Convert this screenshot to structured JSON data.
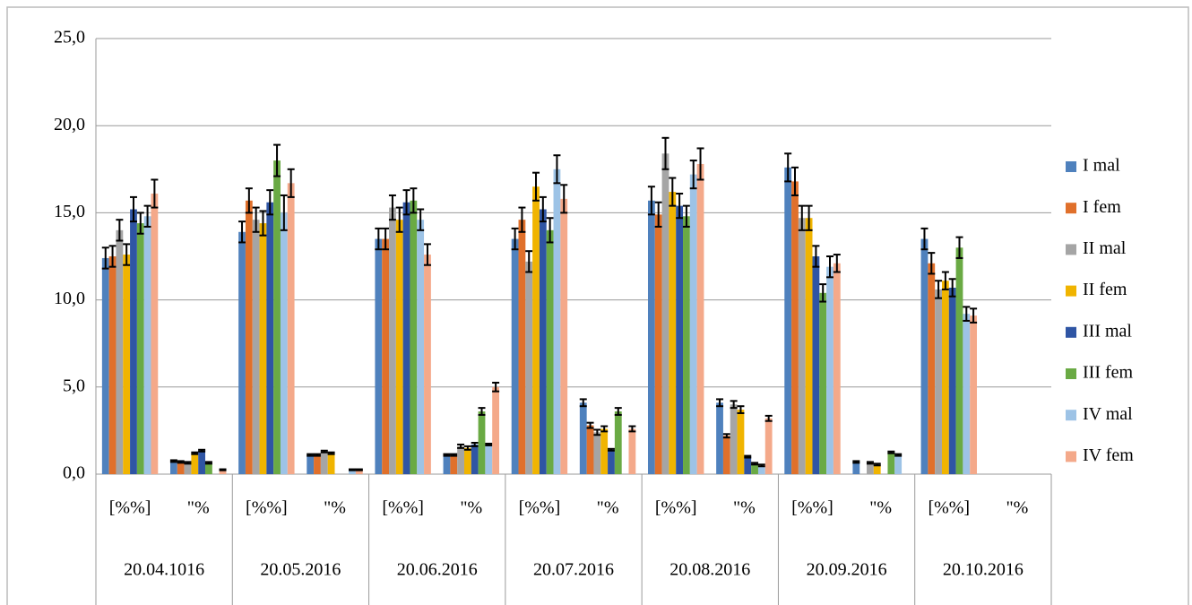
{
  "chart_data": {
    "type": "bar",
    "categories": [
      "[%%]",
      "\"%",
      "[%%]",
      "\"%",
      "[%%]",
      "\"%",
      "[%%]",
      "\"%",
      "[%%]",
      "\"%",
      "[%%]",
      "\"%",
      "[%%]",
      "\"%"
    ],
    "groups": [
      "20.04.1016",
      "20.05.2016",
      "20.06.2016",
      "20.07.2016",
      "20.08.2016",
      "20.09.2016",
      "20.10.2016"
    ],
    "ylim": [
      0,
      25
    ],
    "yticks": [
      {
        "value": 0,
        "label": "0,0"
      },
      {
        "value": 5,
        "label": "5,0"
      },
      {
        "value": 10,
        "label": "10,0"
      },
      {
        "value": 15,
        "label": "15,0"
      },
      {
        "value": 20,
        "label": "20,0"
      },
      {
        "value": 25,
        "label": "25,0"
      }
    ],
    "grid": true,
    "legend": "right",
    "series": [
      {
        "name": "I mal",
        "color": "#4f81bd",
        "values": [
          12.4,
          0.75,
          13.9,
          1.1,
          13.5,
          1.1,
          13.5,
          4.1,
          15.7,
          4.1,
          17.6,
          0.7,
          13.5,
          null
        ],
        "errors": [
          0.6,
          0.05,
          0.6,
          0.05,
          0.6,
          0.05,
          0.6,
          0.2,
          0.8,
          0.2,
          0.8,
          0.05,
          0.6,
          null
        ]
      },
      {
        "name": "I fem",
        "color": "#e0702b",
        "values": [
          12.5,
          0.7,
          15.7,
          1.1,
          13.5,
          1.1,
          14.6,
          2.8,
          14.9,
          2.2,
          16.8,
          null,
          12.1,
          null
        ],
        "errors": [
          0.6,
          0.05,
          0.7,
          0.05,
          0.6,
          0.05,
          0.7,
          0.15,
          0.7,
          0.1,
          0.8,
          null,
          0.6,
          null
        ]
      },
      {
        "name": "II mal",
        "color": "#a5a5a5",
        "values": [
          14.0,
          0.65,
          14.6,
          1.3,
          15.3,
          1.6,
          12.2,
          2.4,
          18.4,
          4.0,
          14.7,
          0.65,
          10.6,
          null
        ],
        "errors": [
          0.6,
          0.05,
          0.7,
          0.05,
          0.7,
          0.1,
          0.6,
          0.15,
          0.9,
          0.2,
          0.7,
          0.05,
          0.5,
          null
        ]
      },
      {
        "name": "II fem",
        "color": "#f0b400",
        "values": [
          12.6,
          1.2,
          14.4,
          1.2,
          14.6,
          1.5,
          16.5,
          2.6,
          16.2,
          3.7,
          14.7,
          0.55,
          11.1,
          null
        ],
        "errors": [
          0.6,
          0.05,
          0.7,
          0.05,
          0.7,
          0.1,
          0.8,
          0.15,
          0.8,
          0.2,
          0.7,
          0.05,
          0.5,
          null
        ]
      },
      {
        "name": "III mal",
        "color": "#2f55a4",
        "values": [
          15.2,
          1.35,
          15.6,
          null,
          15.6,
          1.7,
          15.2,
          1.4,
          15.4,
          1.0,
          12.5,
          null,
          10.7,
          null
        ],
        "errors": [
          0.7,
          0.05,
          0.7,
          null,
          0.7,
          0.1,
          0.7,
          0.05,
          0.7,
          0.05,
          0.6,
          null,
          0.5,
          null
        ]
      },
      {
        "name": "III fem",
        "color": "#6aaa44",
        "values": [
          14.4,
          0.65,
          18.0,
          null,
          15.7,
          3.6,
          14.0,
          3.6,
          14.8,
          0.6,
          10.4,
          1.25,
          13.0,
          null
        ],
        "errors": [
          0.6,
          0.05,
          0.9,
          null,
          0.7,
          0.2,
          0.7,
          0.2,
          0.6,
          0.05,
          0.5,
          0.05,
          0.6,
          null
        ]
      },
      {
        "name": "IV mal",
        "color": "#9dc3e6",
        "values": [
          14.8,
          null,
          15.0,
          0.25,
          14.6,
          1.7,
          17.5,
          null,
          17.2,
          0.5,
          11.9,
          1.1,
          9.2,
          null
        ],
        "errors": [
          0.6,
          null,
          1.0,
          0.03,
          0.6,
          0.05,
          0.8,
          null,
          0.8,
          0.05,
          0.6,
          0.05,
          0.4,
          null
        ]
      },
      {
        "name": "IV fem",
        "color": "#f4a98a",
        "values": [
          16.1,
          0.25,
          16.7,
          0.25,
          12.6,
          5.0,
          15.8,
          2.6,
          17.8,
          3.2,
          12.1,
          null,
          9.1,
          null
        ],
        "errors": [
          0.8,
          0.03,
          0.8,
          0.03,
          0.6,
          0.25,
          0.8,
          0.15,
          0.9,
          0.15,
          0.5,
          null,
          0.4,
          null
        ]
      }
    ]
  }
}
